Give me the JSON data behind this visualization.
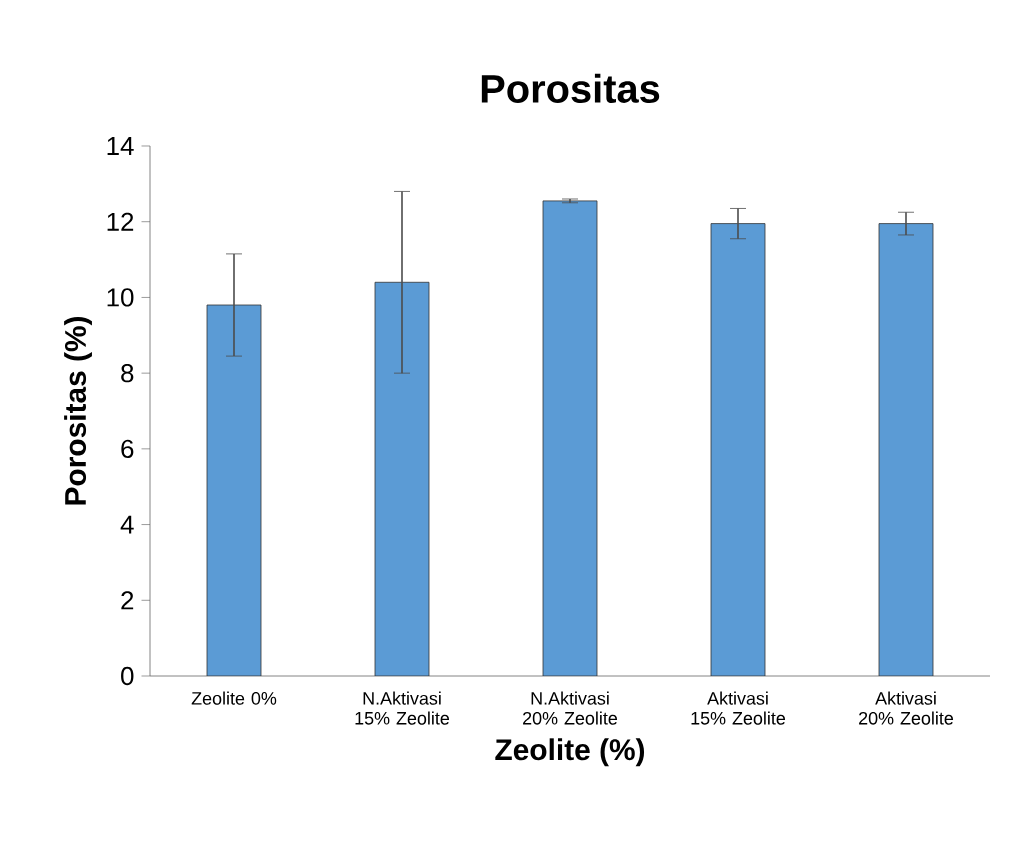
{
  "chart_data": {
    "type": "bar",
    "title": "Porositas",
    "xlabel": "Zeolite (%)",
    "ylabel": "Porositas (%)",
    "categories": [
      "Zeolite 0%",
      "N.Aktivasi 15% Zeolite",
      "N.Aktivasi 20% Zeolite",
      "Aktivasi 15% Zeolite",
      "Aktivasi 20% Zeolite"
    ],
    "values": [
      9.8,
      10.4,
      12.55,
      11.95,
      11.95
    ],
    "errors": [
      1.35,
      2.4,
      0.05,
      0.4,
      0.3
    ],
    "color": "#5b9bd5",
    "ylim": [
      0,
      14
    ],
    "yticks": [
      0,
      2,
      4,
      6,
      8,
      10,
      12,
      14
    ]
  }
}
